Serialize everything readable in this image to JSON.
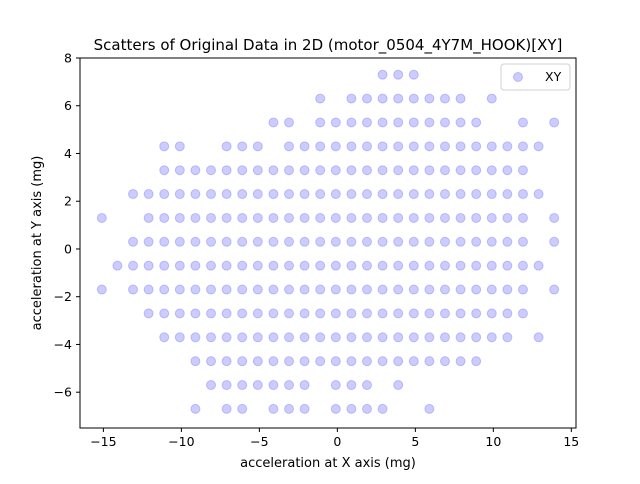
{
  "chart_data": {
    "type": "scatter",
    "title": "Scatters of Original Data in 2D (motor_0504_4Y7M_HOOK)[XY]",
    "xlabel": "acceleration at X axis (mg)",
    "ylabel": "acceleration at Y axis (mg)",
    "xlim": [
      -16.5,
      15.3
    ],
    "ylim": [
      -7.5,
      8.0
    ],
    "xticks": [
      -15,
      -10,
      -5,
      0,
      5,
      10,
      15
    ],
    "yticks": [
      -6,
      -4,
      -2,
      0,
      2,
      4,
      6,
      8
    ],
    "xtick_labels": [
      "−15",
      "−10",
      "−5",
      "0",
      "5",
      "10",
      "15"
    ],
    "ytick_labels": [
      "−6",
      "−4",
      "−2",
      "0",
      "2",
      "4",
      "6",
      "8"
    ],
    "grid": false,
    "legend_position": "top-right",
    "series": [
      {
        "name": "XY",
        "color": "#0000ff",
        "point_alpha": 0.2,
        "x_grid_values": [
          -15.1,
          -14.1,
          -13.1,
          -12.1,
          -11.1,
          -10.1,
          -9.1,
          -8.1,
          -7.1,
          -6.1,
          -5.1,
          -4.1,
          -3.1,
          -2.1,
          -1.1,
          -0.1,
          0.9,
          1.9,
          2.9,
          3.9,
          4.9,
          5.9,
          6.9,
          7.9,
          8.9,
          9.9,
          10.9,
          11.9,
          12.9,
          13.9
        ],
        "y_grid_values": [
          7.3,
          6.3,
          5.3,
          4.3,
          3.3,
          2.3,
          1.3,
          0.3,
          -0.7,
          -1.7,
          -2.7,
          -3.7,
          -4.7,
          -5.7,
          -6.7
        ],
        "points": [
          [
            2.9,
            7.3
          ],
          [
            3.9,
            7.3
          ],
          [
            4.9,
            7.3
          ],
          [
            -1.1,
            6.3
          ],
          [
            0.9,
            6.3
          ],
          [
            1.9,
            6.3
          ],
          [
            2.9,
            6.3
          ],
          [
            3.9,
            6.3
          ],
          [
            4.9,
            6.3
          ],
          [
            5.9,
            6.3
          ],
          [
            6.9,
            6.3
          ],
          [
            7.9,
            6.3
          ],
          [
            9.9,
            6.3
          ],
          [
            -4.1,
            5.3
          ],
          [
            -3.1,
            5.3
          ],
          [
            -1.1,
            5.3
          ],
          [
            -0.1,
            5.3
          ],
          [
            0.9,
            5.3
          ],
          [
            1.9,
            5.3
          ],
          [
            2.9,
            5.3
          ],
          [
            3.9,
            5.3
          ],
          [
            4.9,
            5.3
          ],
          [
            5.9,
            5.3
          ],
          [
            6.9,
            5.3
          ],
          [
            7.9,
            5.3
          ],
          [
            8.9,
            5.3
          ],
          [
            11.9,
            5.3
          ],
          [
            13.9,
            5.3
          ],
          [
            -11.1,
            4.3
          ],
          [
            -10.1,
            4.3
          ],
          [
            -7.1,
            4.3
          ],
          [
            -6.1,
            4.3
          ],
          [
            -5.1,
            4.3
          ],
          [
            -3.1,
            4.3
          ],
          [
            -2.1,
            4.3
          ],
          [
            -1.1,
            4.3
          ],
          [
            -0.1,
            4.3
          ],
          [
            0.9,
            4.3
          ],
          [
            1.9,
            4.3
          ],
          [
            2.9,
            4.3
          ],
          [
            3.9,
            4.3
          ],
          [
            4.9,
            4.3
          ],
          [
            5.9,
            4.3
          ],
          [
            6.9,
            4.3
          ],
          [
            7.9,
            4.3
          ],
          [
            8.9,
            4.3
          ],
          [
            9.9,
            4.3
          ],
          [
            10.9,
            4.3
          ],
          [
            11.9,
            4.3
          ],
          [
            12.9,
            4.3
          ],
          [
            -11.1,
            3.3
          ],
          [
            -10.1,
            3.3
          ],
          [
            -9.1,
            3.3
          ],
          [
            -8.1,
            3.3
          ],
          [
            -7.1,
            3.3
          ],
          [
            -6.1,
            3.3
          ],
          [
            -5.1,
            3.3
          ],
          [
            -4.1,
            3.3
          ],
          [
            -3.1,
            3.3
          ],
          [
            -2.1,
            3.3
          ],
          [
            -1.1,
            3.3
          ],
          [
            -0.1,
            3.3
          ],
          [
            0.9,
            3.3
          ],
          [
            1.9,
            3.3
          ],
          [
            2.9,
            3.3
          ],
          [
            3.9,
            3.3
          ],
          [
            4.9,
            3.3
          ],
          [
            5.9,
            3.3
          ],
          [
            6.9,
            3.3
          ],
          [
            7.9,
            3.3
          ],
          [
            8.9,
            3.3
          ],
          [
            9.9,
            3.3
          ],
          [
            10.9,
            3.3
          ],
          [
            11.9,
            3.3
          ],
          [
            -13.1,
            2.3
          ],
          [
            -12.1,
            2.3
          ],
          [
            -11.1,
            2.3
          ],
          [
            -10.1,
            2.3
          ],
          [
            -9.1,
            2.3
          ],
          [
            -8.1,
            2.3
          ],
          [
            -7.1,
            2.3
          ],
          [
            -6.1,
            2.3
          ],
          [
            -5.1,
            2.3
          ],
          [
            -4.1,
            2.3
          ],
          [
            -3.1,
            2.3
          ],
          [
            -2.1,
            2.3
          ],
          [
            -1.1,
            2.3
          ],
          [
            -0.1,
            2.3
          ],
          [
            0.9,
            2.3
          ],
          [
            1.9,
            2.3
          ],
          [
            2.9,
            2.3
          ],
          [
            3.9,
            2.3
          ],
          [
            4.9,
            2.3
          ],
          [
            5.9,
            2.3
          ],
          [
            6.9,
            2.3
          ],
          [
            7.9,
            2.3
          ],
          [
            8.9,
            2.3
          ],
          [
            9.9,
            2.3
          ],
          [
            10.9,
            2.3
          ],
          [
            11.9,
            2.3
          ],
          [
            12.9,
            2.3
          ],
          [
            -15.1,
            1.3
          ],
          [
            -12.1,
            1.3
          ],
          [
            -11.1,
            1.3
          ],
          [
            -10.1,
            1.3
          ],
          [
            -9.1,
            1.3
          ],
          [
            -8.1,
            1.3
          ],
          [
            -7.1,
            1.3
          ],
          [
            -6.1,
            1.3
          ],
          [
            -5.1,
            1.3
          ],
          [
            -4.1,
            1.3
          ],
          [
            -3.1,
            1.3
          ],
          [
            -2.1,
            1.3
          ],
          [
            -1.1,
            1.3
          ],
          [
            -0.1,
            1.3
          ],
          [
            0.9,
            1.3
          ],
          [
            1.9,
            1.3
          ],
          [
            2.9,
            1.3
          ],
          [
            3.9,
            1.3
          ],
          [
            4.9,
            1.3
          ],
          [
            5.9,
            1.3
          ],
          [
            6.9,
            1.3
          ],
          [
            7.9,
            1.3
          ],
          [
            8.9,
            1.3
          ],
          [
            9.9,
            1.3
          ],
          [
            10.9,
            1.3
          ],
          [
            11.9,
            1.3
          ],
          [
            13.9,
            1.3
          ],
          [
            -13.1,
            0.3
          ],
          [
            -12.1,
            0.3
          ],
          [
            -11.1,
            0.3
          ],
          [
            -10.1,
            0.3
          ],
          [
            -9.1,
            0.3
          ],
          [
            -8.1,
            0.3
          ],
          [
            -7.1,
            0.3
          ],
          [
            -6.1,
            0.3
          ],
          [
            -5.1,
            0.3
          ],
          [
            -4.1,
            0.3
          ],
          [
            -3.1,
            0.3
          ],
          [
            -2.1,
            0.3
          ],
          [
            -1.1,
            0.3
          ],
          [
            -0.1,
            0.3
          ],
          [
            0.9,
            0.3
          ],
          [
            1.9,
            0.3
          ],
          [
            2.9,
            0.3
          ],
          [
            3.9,
            0.3
          ],
          [
            4.9,
            0.3
          ],
          [
            5.9,
            0.3
          ],
          [
            6.9,
            0.3
          ],
          [
            7.9,
            0.3
          ],
          [
            8.9,
            0.3
          ],
          [
            9.9,
            0.3
          ],
          [
            10.9,
            0.3
          ],
          [
            11.9,
            0.3
          ],
          [
            13.9,
            0.3
          ],
          [
            -14.1,
            -0.7
          ],
          [
            -13.1,
            -0.7
          ],
          [
            -12.1,
            -0.7
          ],
          [
            -11.1,
            -0.7
          ],
          [
            -10.1,
            -0.7
          ],
          [
            -9.1,
            -0.7
          ],
          [
            -8.1,
            -0.7
          ],
          [
            -7.1,
            -0.7
          ],
          [
            -6.1,
            -0.7
          ],
          [
            -5.1,
            -0.7
          ],
          [
            -4.1,
            -0.7
          ],
          [
            -3.1,
            -0.7
          ],
          [
            -2.1,
            -0.7
          ],
          [
            -1.1,
            -0.7
          ],
          [
            -0.1,
            -0.7
          ],
          [
            0.9,
            -0.7
          ],
          [
            1.9,
            -0.7
          ],
          [
            2.9,
            -0.7
          ],
          [
            3.9,
            -0.7
          ],
          [
            4.9,
            -0.7
          ],
          [
            5.9,
            -0.7
          ],
          [
            6.9,
            -0.7
          ],
          [
            7.9,
            -0.7
          ],
          [
            8.9,
            -0.7
          ],
          [
            9.9,
            -0.7
          ],
          [
            10.9,
            -0.7
          ],
          [
            11.9,
            -0.7
          ],
          [
            12.9,
            -0.7
          ],
          [
            -15.1,
            -1.7
          ],
          [
            -13.1,
            -1.7
          ],
          [
            -12.1,
            -1.7
          ],
          [
            -11.1,
            -1.7
          ],
          [
            -10.1,
            -1.7
          ],
          [
            -9.1,
            -1.7
          ],
          [
            -8.1,
            -1.7
          ],
          [
            -7.1,
            -1.7
          ],
          [
            -6.1,
            -1.7
          ],
          [
            -5.1,
            -1.7
          ],
          [
            -4.1,
            -1.7
          ],
          [
            -3.1,
            -1.7
          ],
          [
            -2.1,
            -1.7
          ],
          [
            -1.1,
            -1.7
          ],
          [
            -0.1,
            -1.7
          ],
          [
            0.9,
            -1.7
          ],
          [
            1.9,
            -1.7
          ],
          [
            2.9,
            -1.7
          ],
          [
            3.9,
            -1.7
          ],
          [
            4.9,
            -1.7
          ],
          [
            5.9,
            -1.7
          ],
          [
            6.9,
            -1.7
          ],
          [
            7.9,
            -1.7
          ],
          [
            8.9,
            -1.7
          ],
          [
            9.9,
            -1.7
          ],
          [
            10.9,
            -1.7
          ],
          [
            11.9,
            -1.7
          ],
          [
            13.9,
            -1.7
          ],
          [
            -12.1,
            -2.7
          ],
          [
            -11.1,
            -2.7
          ],
          [
            -10.1,
            -2.7
          ],
          [
            -9.1,
            -2.7
          ],
          [
            -8.1,
            -2.7
          ],
          [
            -7.1,
            -2.7
          ],
          [
            -6.1,
            -2.7
          ],
          [
            -5.1,
            -2.7
          ],
          [
            -4.1,
            -2.7
          ],
          [
            -3.1,
            -2.7
          ],
          [
            -2.1,
            -2.7
          ],
          [
            -1.1,
            -2.7
          ],
          [
            -0.1,
            -2.7
          ],
          [
            0.9,
            -2.7
          ],
          [
            1.9,
            -2.7
          ],
          [
            2.9,
            -2.7
          ],
          [
            3.9,
            -2.7
          ],
          [
            4.9,
            -2.7
          ],
          [
            5.9,
            -2.7
          ],
          [
            6.9,
            -2.7
          ],
          [
            7.9,
            -2.7
          ],
          [
            8.9,
            -2.7
          ],
          [
            9.9,
            -2.7
          ],
          [
            10.9,
            -2.7
          ],
          [
            11.9,
            -2.7
          ],
          [
            -11.1,
            -3.7
          ],
          [
            -10.1,
            -3.7
          ],
          [
            -9.1,
            -3.7
          ],
          [
            -8.1,
            -3.7
          ],
          [
            -7.1,
            -3.7
          ],
          [
            -6.1,
            -3.7
          ],
          [
            -5.1,
            -3.7
          ],
          [
            -4.1,
            -3.7
          ],
          [
            -3.1,
            -3.7
          ],
          [
            -2.1,
            -3.7
          ],
          [
            -1.1,
            -3.7
          ],
          [
            -0.1,
            -3.7
          ],
          [
            0.9,
            -3.7
          ],
          [
            1.9,
            -3.7
          ],
          [
            2.9,
            -3.7
          ],
          [
            3.9,
            -3.7
          ],
          [
            4.9,
            -3.7
          ],
          [
            5.9,
            -3.7
          ],
          [
            6.9,
            -3.7
          ],
          [
            7.9,
            -3.7
          ],
          [
            8.9,
            -3.7
          ],
          [
            9.9,
            -3.7
          ],
          [
            10.9,
            -3.7
          ],
          [
            12.9,
            -3.7
          ],
          [
            -9.1,
            -4.7
          ],
          [
            -8.1,
            -4.7
          ],
          [
            -7.1,
            -4.7
          ],
          [
            -6.1,
            -4.7
          ],
          [
            -5.1,
            -4.7
          ],
          [
            -4.1,
            -4.7
          ],
          [
            -3.1,
            -4.7
          ],
          [
            -2.1,
            -4.7
          ],
          [
            -1.1,
            -4.7
          ],
          [
            -0.1,
            -4.7
          ],
          [
            0.9,
            -4.7
          ],
          [
            1.9,
            -4.7
          ],
          [
            2.9,
            -4.7
          ],
          [
            3.9,
            -4.7
          ],
          [
            4.9,
            -4.7
          ],
          [
            5.9,
            -4.7
          ],
          [
            6.9,
            -4.7
          ],
          [
            7.9,
            -4.7
          ],
          [
            8.9,
            -4.7
          ],
          [
            -8.1,
            -5.7
          ],
          [
            -7.1,
            -5.7
          ],
          [
            -6.1,
            -5.7
          ],
          [
            -5.1,
            -5.7
          ],
          [
            -4.1,
            -5.7
          ],
          [
            -3.1,
            -5.7
          ],
          [
            -2.1,
            -5.7
          ],
          [
            -0.1,
            -5.7
          ],
          [
            0.9,
            -5.7
          ],
          [
            1.9,
            -5.7
          ],
          [
            3.9,
            -5.7
          ],
          [
            -9.1,
            -6.7
          ],
          [
            -7.1,
            -6.7
          ],
          [
            -6.1,
            -6.7
          ],
          [
            -4.1,
            -6.7
          ],
          [
            -3.1,
            -6.7
          ],
          [
            -2.1,
            -6.7
          ],
          [
            -0.1,
            -6.7
          ],
          [
            0.9,
            -6.7
          ],
          [
            1.9,
            -6.7
          ],
          [
            2.9,
            -6.7
          ],
          [
            5.9,
            -6.7
          ]
        ]
      }
    ]
  }
}
